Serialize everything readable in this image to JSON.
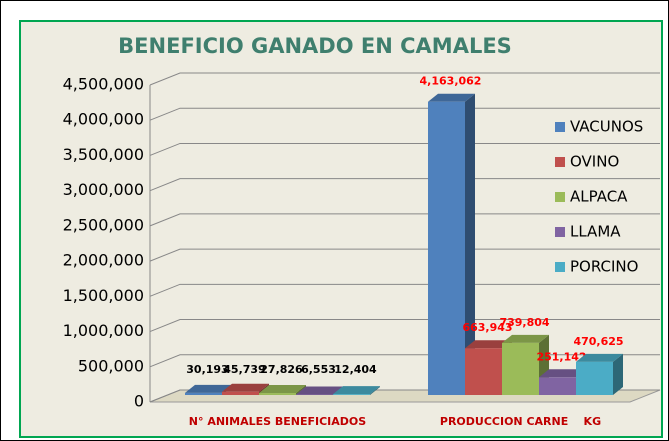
{
  "chart_data": {
    "type": "bar3d",
    "title": "BENEFICIO GANADO EN CAMALES",
    "categories": [
      "N° ANIMALES BENEFICIADOS",
      "PRODUCCION CARNE    KG"
    ],
    "series": [
      {
        "name": "VACUNOS",
        "color": "#4f81bd",
        "values": [
          30193,
          4163062
        ],
        "value_labels": [
          "30,193",
          "4,163,062"
        ]
      },
      {
        "name": "OVINO",
        "color": "#c0504d",
        "values": [
          45739,
          663943
        ],
        "value_labels": [
          "45,739",
          "663,943"
        ]
      },
      {
        "name": "ALPACA",
        "color": "#9bbb59",
        "values": [
          27826,
          739804
        ],
        "value_labels": [
          "27,826",
          "739,804"
        ]
      },
      {
        "name": "LLAMA",
        "color": "#8064a2",
        "values": [
          6553,
          251142
        ],
        "value_labels": [
          "6,553",
          "251,142"
        ]
      },
      {
        "name": "PORCINO",
        "color": "#4bacc6",
        "values": [
          12404,
          470625
        ],
        "value_labels": [
          "12,404",
          "470,625"
        ]
      }
    ],
    "ylim": [
      0,
      4500000
    ],
    "yticks": [
      0,
      {
        "value": 500000,
        "label": "500,000"
      },
      {
        "value": 1000000,
        "label": "1,000,000"
      },
      {
        "value": 1500000,
        "label": "1,500,000"
      },
      {
        "value": 2000000,
        "label": "2,000,000"
      },
      {
        "value": 2500000,
        "label": "2,500,000"
      },
      {
        "value": 3000000,
        "label": "3,000,000"
      },
      {
        "value": 3500000,
        "label": "3,500,000"
      },
      {
        "value": 4000000,
        "label": "4,000,000"
      },
      {
        "value": 4500000,
        "label": "4,500,000"
      }
    ],
    "grid": true,
    "legend": "right"
  }
}
